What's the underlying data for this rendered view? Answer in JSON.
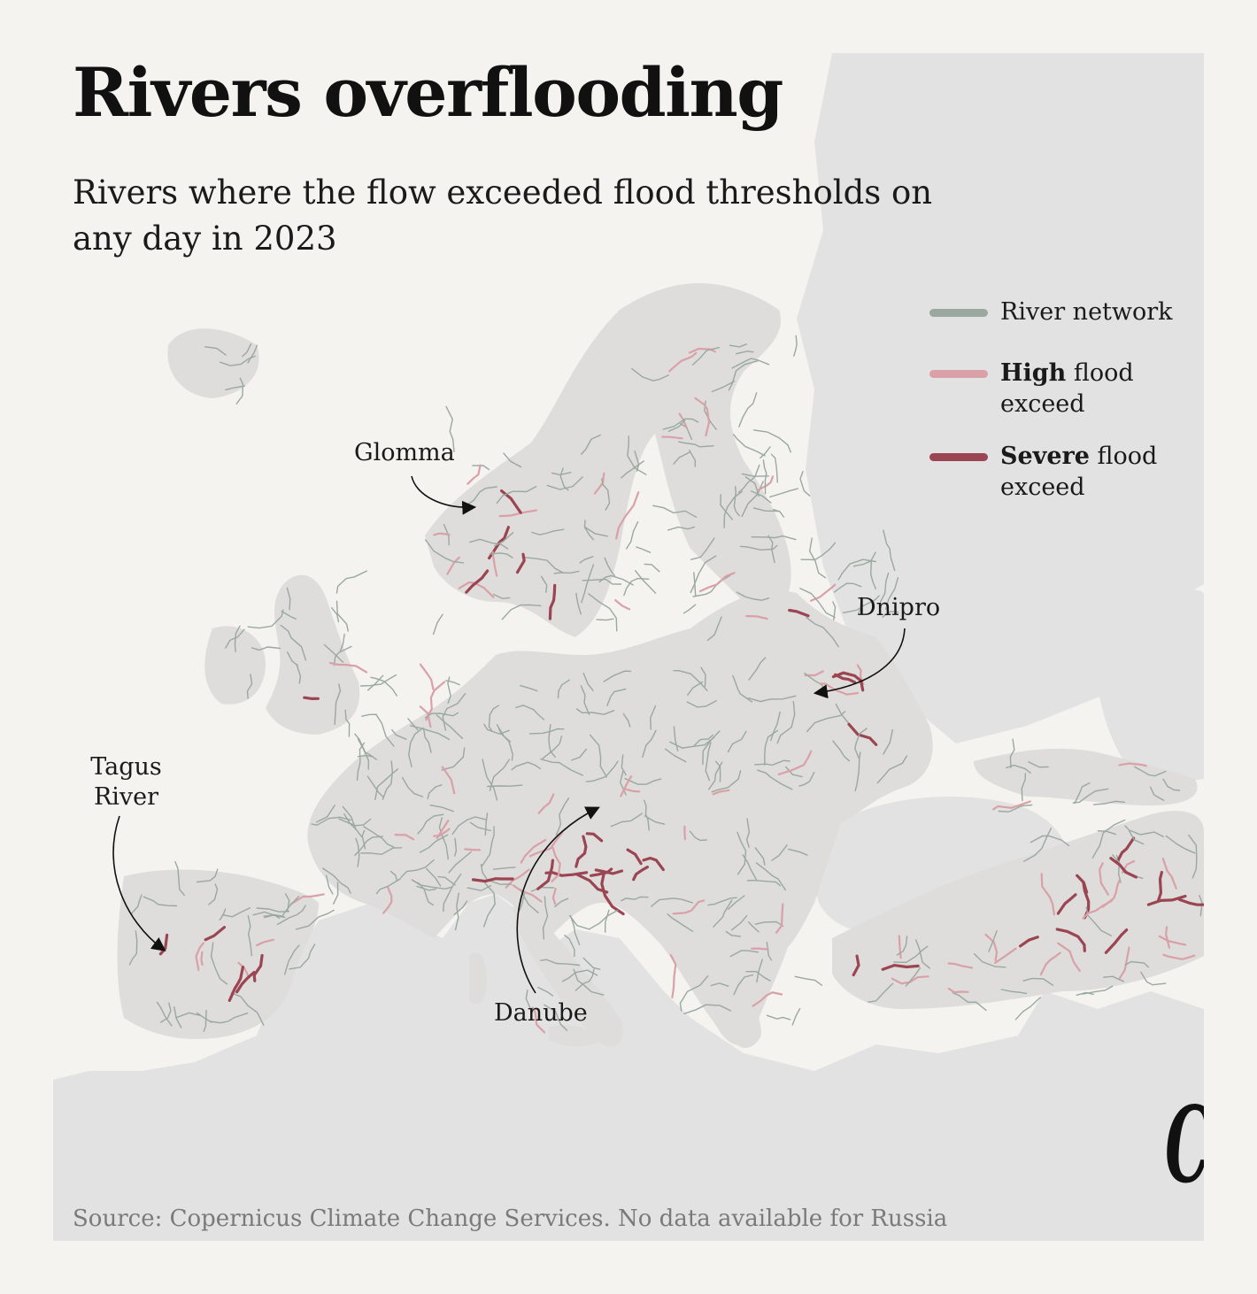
{
  "title": "Rivers overflooding",
  "subtitle": "Rivers where the flow exceeded flood thresholds on any day in 2023",
  "legend": [
    {
      "bold": "",
      "label": "River network",
      "color": "#9aa89f"
    },
    {
      "bold": "High",
      "label": " flood exceed",
      "color": "#d9a1a7"
    },
    {
      "bold": "Severe",
      "label": " flood exceed",
      "color": "#9b4552"
    }
  ],
  "callouts": {
    "glomma": "Glomma",
    "dnipro": "Dnipro",
    "tagus": "Tagus River",
    "danube": "Danube"
  },
  "source": "Source: Copernicus Climate Change Services. No data available for Russia",
  "logo": "C",
  "colors": {
    "background": "#f4f3ef",
    "sea": "#e2e2e2",
    "land_with_data": "#dedddb",
    "river_network": "#9aa89f",
    "high_flood": "#d9a1a7",
    "severe_flood": "#9b4552"
  }
}
